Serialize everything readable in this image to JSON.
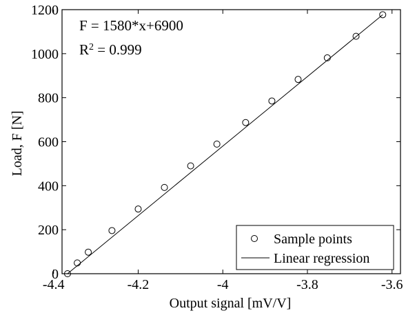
{
  "chart_data": {
    "type": "scatter",
    "xlabel": "Output signal [mV/V]",
    "ylabel": "Load, F [N]",
    "xlim": [
      -4.38,
      -3.58
    ],
    "ylim": [
      0,
      1200
    ],
    "x_ticks": [
      -4.4,
      -4.2,
      -4,
      -3.8,
      -3.6
    ],
    "x_tick_labels": [
      "-4.4",
      "-4.2",
      "-4",
      "-3.8",
      "-3.6"
    ],
    "y_ticks": [
      0,
      200,
      400,
      600,
      800,
      1000,
      1200
    ],
    "y_tick_labels": [
      "0",
      "200",
      "400",
      "600",
      "800",
      "1000",
      "1200"
    ],
    "grid": false,
    "legend_position": "bottom-right",
    "annotations": {
      "equation": "F = 1580*x+6900",
      "r2_prefix": "R",
      "r2_exp": "2",
      "r2_value": " = 0.999"
    },
    "series": [
      {
        "name": "Sample points",
        "kind": "scatter",
        "marker": "open-circle",
        "color": "#000000",
        "x": [
          -4.367,
          -4.344,
          -4.318,
          -4.262,
          -4.2,
          -4.138,
          -4.076,
          -4.014,
          -3.946,
          -3.884,
          -3.822,
          -3.753,
          -3.685,
          -3.622
        ],
        "y": [
          0,
          49,
          98,
          196,
          294,
          392,
          490,
          589,
          687,
          785,
          883,
          981,
          1079,
          1177
        ]
      },
      {
        "name": "Linear regression",
        "kind": "line",
        "color": "#000000",
        "x": [
          -4.367,
          -3.622
        ],
        "y": [
          0,
          1177
        ]
      }
    ]
  }
}
